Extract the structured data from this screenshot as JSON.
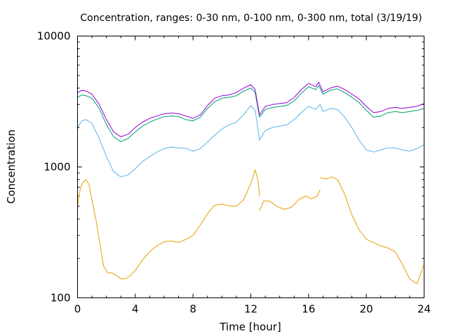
{
  "chart_data": {
    "type": "line",
    "title": "Concentration, ranges: 0-30 nm, 0-100 nm, 0-300 nm, total (3/19/19)",
    "xlabel": "Time [hour]",
    "ylabel": "Concentration",
    "xlim": [
      0,
      24
    ],
    "ylim": [
      100,
      10000
    ],
    "yscale": "log",
    "grid": false,
    "legend": "none",
    "x_ticks": [
      0,
      4,
      8,
      12,
      16,
      20,
      24
    ],
    "x_tick_labels": [
      "0",
      "4",
      "8",
      "12",
      "16",
      "20",
      "24"
    ],
    "y_ticks": [
      100,
      1000,
      10000
    ],
    "y_tick_labels": [
      "100",
      "1000",
      "10000"
    ],
    "series": [
      {
        "color": "#e69f00",
        "segments": [
          [
            [
              0,
              500
            ],
            [
              0.2,
              690
            ],
            [
              0.4,
              770
            ],
            [
              0.6,
              800
            ],
            [
              0.8,
              730
            ],
            [
              1,
              560
            ],
            [
              1.3,
              380
            ],
            [
              1.6,
              240
            ],
            [
              1.8,
              175
            ],
            [
              2.1,
              155
            ],
            [
              2.4,
              155
            ],
            [
              2.7,
              148
            ],
            [
              3,
              140
            ],
            [
              3.3,
              140
            ],
            [
              3.6,
              146
            ],
            [
              4,
              162
            ],
            [
              4.5,
              195
            ],
            [
              5,
              225
            ],
            [
              5.5,
              250
            ],
            [
              6,
              268
            ],
            [
              6.5,
              272
            ],
            [
              7,
              265
            ],
            [
              7.5,
              280
            ],
            [
              8,
              300
            ],
            [
              8.5,
              360
            ],
            [
              9,
              440
            ],
            [
              9.5,
              510
            ],
            [
              10,
              520
            ],
            [
              10.5,
              505
            ],
            [
              11,
              500
            ],
            [
              11.5,
              560
            ],
            [
              12,
              750
            ],
            [
              12.3,
              950
            ],
            [
              12.5,
              790
            ],
            [
              12.6,
              600
            ]
          ],
          [
            [
              12.6,
              460
            ],
            [
              12.9,
              550
            ],
            [
              13.3,
              550
            ],
            [
              13.8,
              500
            ],
            [
              14.3,
              475
            ],
            [
              14.8,
              490
            ],
            [
              15.3,
              560
            ],
            [
              15.8,
              600
            ],
            [
              16.2,
              570
            ],
            [
              16.6,
              600
            ],
            [
              16.8,
              670
            ]
          ],
          [
            [
              16.8,
              830
            ],
            [
              17.2,
              810
            ],
            [
              17.6,
              840
            ],
            [
              18,
              800
            ],
            [
              18.5,
              620
            ],
            [
              19,
              430
            ],
            [
              19.5,
              330
            ],
            [
              20,
              280
            ],
            [
              20.5,
              265
            ],
            [
              21,
              250
            ],
            [
              21.5,
              240
            ],
            [
              22,
              225
            ],
            [
              22.5,
              180
            ],
            [
              23,
              140
            ],
            [
              23.5,
              128
            ],
            [
              24,
              180
            ]
          ]
        ]
      },
      {
        "color": "#56b4e9",
        "segments": [
          [
            [
              0,
              2000
            ],
            [
              0.3,
              2250
            ],
            [
              0.6,
              2300
            ],
            [
              1,
              2150
            ],
            [
              1.5,
              1650
            ],
            [
              2,
              1200
            ],
            [
              2.5,
              920
            ],
            [
              3,
              840
            ],
            [
              3.5,
              870
            ],
            [
              4,
              970
            ],
            [
              4.5,
              1100
            ],
            [
              5,
              1200
            ],
            [
              5.5,
              1300
            ],
            [
              6,
              1380
            ],
            [
              6.5,
              1420
            ],
            [
              7,
              1400
            ],
            [
              7.5,
              1390
            ],
            [
              8,
              1320
            ],
            [
              8.5,
              1380
            ],
            [
              9,
              1550
            ],
            [
              9.5,
              1750
            ],
            [
              10,
              1950
            ],
            [
              10.5,
              2100
            ],
            [
              11,
              2200
            ],
            [
              11.5,
              2500
            ],
            [
              12,
              2950
            ],
            [
              12.3,
              2700
            ],
            [
              12.6,
              1600
            ],
            [
              13,
              1900
            ],
            [
              13.5,
              2000
            ],
            [
              14,
              2050
            ],
            [
              14.5,
              2100
            ],
            [
              15,
              2300
            ],
            [
              15.5,
              2600
            ],
            [
              16,
              2900
            ],
            [
              16.5,
              2750
            ],
            [
              16.8,
              3000
            ],
            [
              17,
              2650
            ],
            [
              17.5,
              2800
            ],
            [
              18,
              2750
            ],
            [
              18.5,
              2400
            ],
            [
              19,
              2000
            ],
            [
              19.5,
              1600
            ],
            [
              20,
              1350
            ],
            [
              20.5,
              1300
            ],
            [
              21,
              1350
            ],
            [
              21.5,
              1400
            ],
            [
              22,
              1400
            ],
            [
              22.5,
              1350
            ],
            [
              23,
              1320
            ],
            [
              23.5,
              1380
            ],
            [
              24,
              1480
            ]
          ]
        ]
      },
      {
        "color": "#009e73",
        "segments": [
          [
            [
              0,
              3400
            ],
            [
              0.3,
              3550
            ],
            [
              0.6,
              3500
            ],
            [
              1,
              3350
            ],
            [
              1.5,
              2800
            ],
            [
              2,
              2100
            ],
            [
              2.5,
              1700
            ],
            [
              3,
              1560
            ],
            [
              3.5,
              1650
            ],
            [
              4,
              1850
            ],
            [
              4.5,
              2050
            ],
            [
              5,
              2200
            ],
            [
              5.5,
              2320
            ],
            [
              6,
              2420
            ],
            [
              6.5,
              2450
            ],
            [
              7,
              2430
            ],
            [
              7.5,
              2300
            ],
            [
              8,
              2250
            ],
            [
              8.5,
              2400
            ],
            [
              9,
              2800
            ],
            [
              9.5,
              3150
            ],
            [
              10,
              3350
            ],
            [
              10.5,
              3400
            ],
            [
              11,
              3500
            ],
            [
              11.5,
              3800
            ],
            [
              12,
              4000
            ],
            [
              12.3,
              3700
            ],
            [
              12.6,
              2400
            ],
            [
              13,
              2750
            ],
            [
              13.5,
              2850
            ],
            [
              14,
              2900
            ],
            [
              14.5,
              2950
            ],
            [
              15,
              3200
            ],
            [
              15.5,
              3650
            ],
            [
              16,
              4100
            ],
            [
              16.5,
              3900
            ],
            [
              16.7,
              4200
            ],
            [
              17,
              3600
            ],
            [
              17.5,
              3850
            ],
            [
              18,
              3950
            ],
            [
              18.5,
              3700
            ],
            [
              19,
              3400
            ],
            [
              19.5,
              3100
            ],
            [
              20,
              2700
            ],
            [
              20.5,
              2400
            ],
            [
              21,
              2450
            ],
            [
              21.5,
              2600
            ],
            [
              22,
              2650
            ],
            [
              22.5,
              2600
            ],
            [
              23,
              2650
            ],
            [
              23.5,
              2700
            ],
            [
              24,
              2800
            ]
          ]
        ]
      },
      {
        "color": "#9400d3",
        "segments": [
          [
            [
              0,
              3700
            ],
            [
              0.3,
              3850
            ],
            [
              0.6,
              3800
            ],
            [
              1,
              3600
            ],
            [
              1.5,
              3000
            ],
            [
              2,
              2300
            ],
            [
              2.5,
              1850
            ],
            [
              3,
              1700
            ],
            [
              3.5,
              1780
            ],
            [
              4,
              2000
            ],
            [
              4.5,
              2200
            ],
            [
              5,
              2350
            ],
            [
              5.5,
              2450
            ],
            [
              6,
              2550
            ],
            [
              6.5,
              2580
            ],
            [
              7,
              2550
            ],
            [
              7.5,
              2450
            ],
            [
              8,
              2350
            ],
            [
              8.5,
              2500
            ],
            [
              9,
              2950
            ],
            [
              9.5,
              3350
            ],
            [
              10,
              3500
            ],
            [
              10.5,
              3550
            ],
            [
              11,
              3700
            ],
            [
              11.5,
              4000
            ],
            [
              12,
              4250
            ],
            [
              12.3,
              3900
            ],
            [
              12.6,
              2500
            ],
            [
              13,
              2900
            ],
            [
              13.5,
              3000
            ],
            [
              14,
              3050
            ],
            [
              14.5,
              3100
            ],
            [
              15,
              3400
            ],
            [
              15.5,
              3900
            ],
            [
              16,
              4350
            ],
            [
              16.5,
              4100
            ],
            [
              16.7,
              4450
            ],
            [
              17,
              3750
            ],
            [
              17.5,
              4000
            ],
            [
              18,
              4150
            ],
            [
              18.5,
              3900
            ],
            [
              19,
              3600
            ],
            [
              19.5,
              3300
            ],
            [
              20,
              2900
            ],
            [
              20.5,
              2600
            ],
            [
              21,
              2650
            ],
            [
              21.5,
              2800
            ],
            [
              22,
              2850
            ],
            [
              22.5,
              2800
            ],
            [
              23,
              2850
            ],
            [
              23.5,
              2900
            ],
            [
              24,
              3050
            ]
          ]
        ]
      }
    ]
  }
}
